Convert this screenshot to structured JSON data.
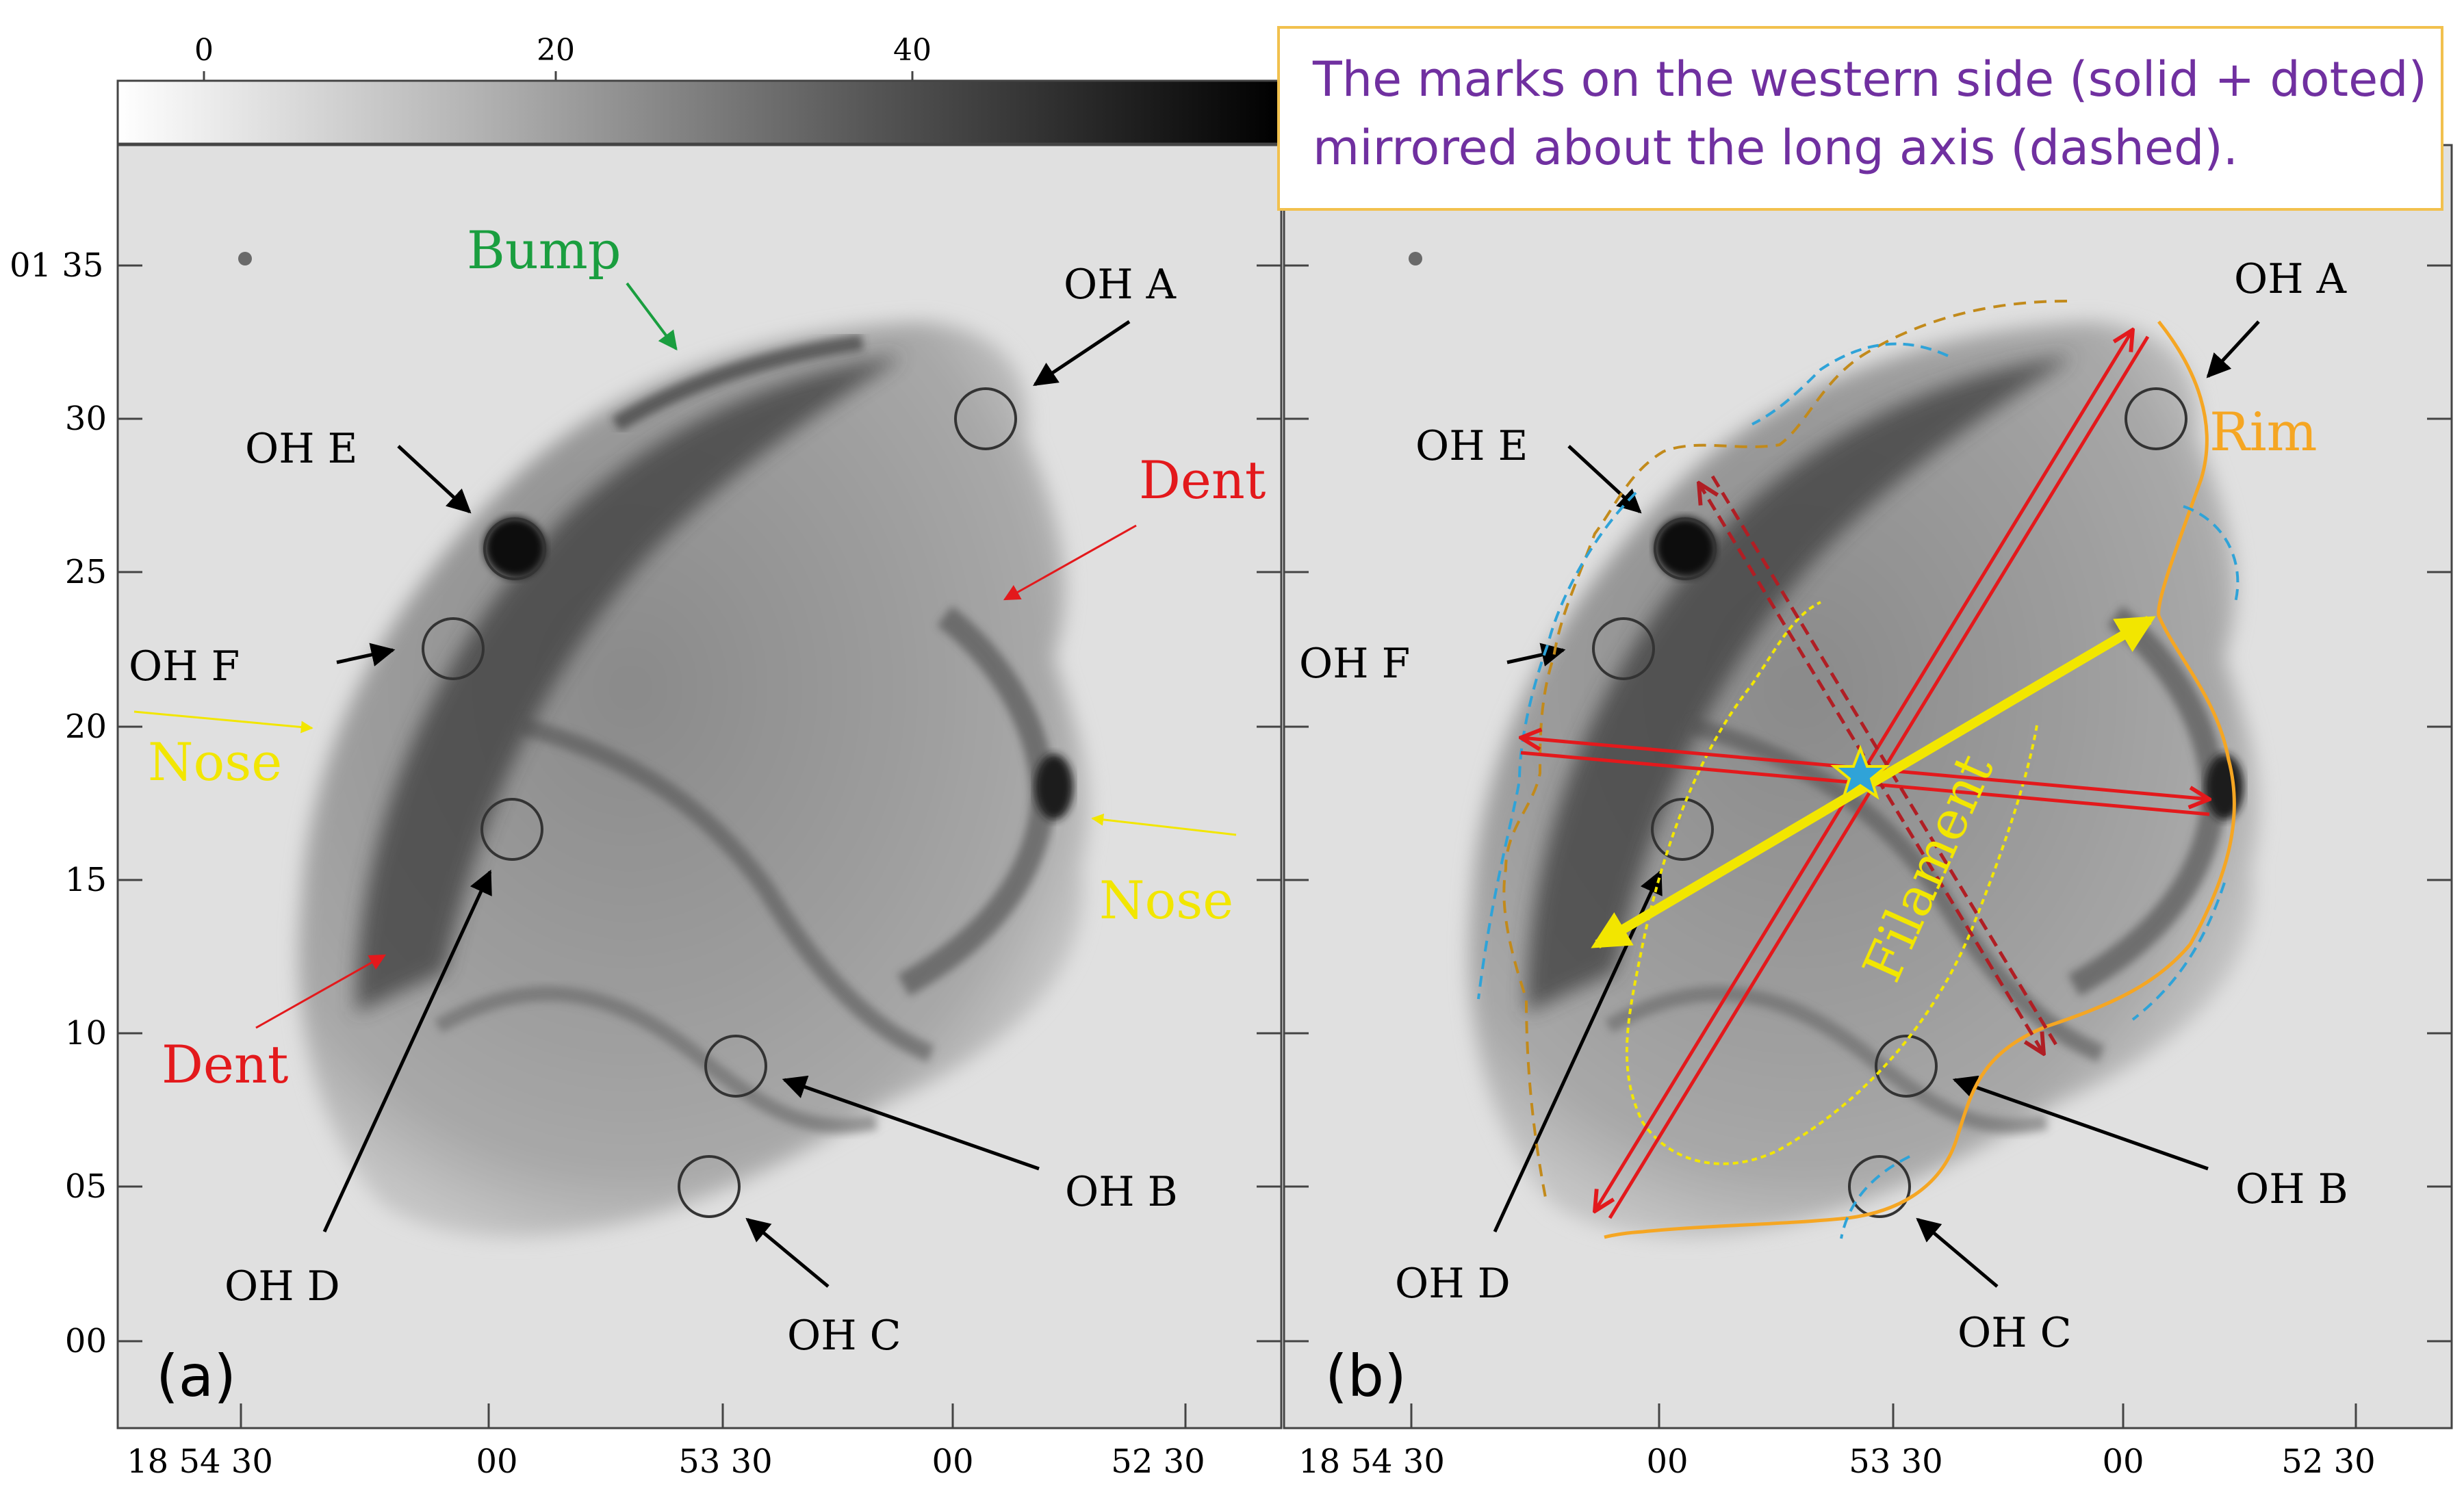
{
  "colorbar": {
    "ticks": [
      "0",
      "20",
      "40"
    ]
  },
  "note": {
    "line1": "The marks on the western side (solid + doted)",
    "line2": "mirrored about the long axis (dashed)."
  },
  "panel_a": {
    "label": "(a)",
    "y_ticks": [
      "01 35",
      "30",
      "25",
      "20",
      "15",
      "10",
      "05",
      "00"
    ],
    "x_ticks": [
      "18 54 30",
      "00",
      "53 30",
      "00",
      "52 30"
    ],
    "annotations": {
      "bump": "Bump",
      "dent_right": "Dent",
      "dent_left": "Dent",
      "nose_left": "Nose",
      "nose_right": "Nose"
    },
    "oh_labels": {
      "a": "OH A",
      "b": "OH B",
      "c": "OH C",
      "d": "OH D",
      "e": "OH E",
      "f": "OH F"
    }
  },
  "panel_b": {
    "label": "(b)",
    "x_ticks": [
      "18 54 30",
      "00",
      "53 30",
      "00",
      "52 30"
    ],
    "annotations": {
      "rim": "Rim",
      "filament": "Filament"
    },
    "oh_labels": {
      "a": "OH A",
      "b": "OH B",
      "c": "OH C",
      "d": "OH D",
      "e": "OH E",
      "f": "OH F"
    }
  },
  "colors": {
    "green": "#1a9e3f",
    "red": "#e3191c",
    "dark_red": "#b01e24",
    "yellow": "#f2e600",
    "orange": "#f5a623",
    "blue": "#2fa3d8",
    "purple": "#7030a0",
    "note_border": "#f2c14e"
  }
}
